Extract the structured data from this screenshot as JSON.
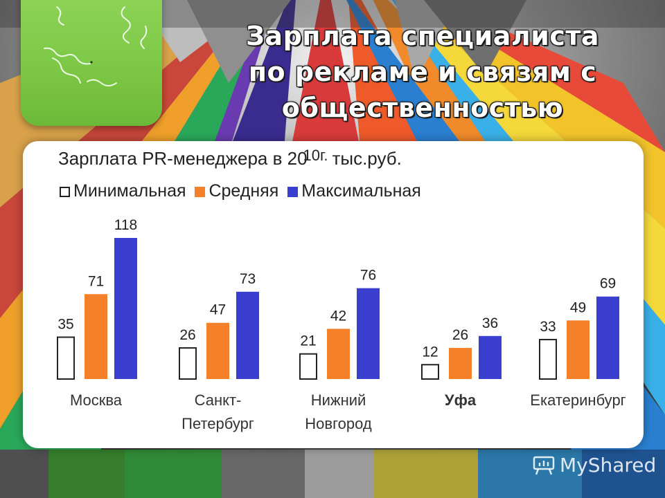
{
  "slide": {
    "title": "Зарплата специалиста по рекламе и связям с общественностью",
    "watermark": "MyShared"
  },
  "colors": {
    "minimum": "#ffffff",
    "average": "#f4802a",
    "maximum": "#3a3fd0",
    "tab_green": "#7cc845"
  },
  "icons": [
    "squiggle-decoration-icon",
    "myshared-logo-icon"
  ],
  "chart_data": {
    "type": "bar",
    "title": "Зарплата PR-менеджера в 2010г.,тыс.руб.",
    "title_main": "Зарплата PR-менеджера в 20",
    "title_overlap": "10г.",
    "title_tail": "тыс.руб.",
    "legend": [
      "Минимальная",
      "Средняя",
      "Максимальная"
    ],
    "categories": [
      [
        "Москва"
      ],
      [
        "Санкт-",
        "Петербург"
      ],
      [
        "Нижний",
        "Новгород"
      ],
      [
        "Уфа"
      ],
      [
        "Екатеринбург"
      ]
    ],
    "series": [
      {
        "name": "Минимальная",
        "values": [
          35,
          26,
          21,
          12,
          33
        ]
      },
      {
        "name": "Средняя",
        "values": [
          71,
          47,
          42,
          26,
          49
        ]
      },
      {
        "name": "Максимальная",
        "values": [
          118,
          73,
          76,
          36,
          69
        ]
      }
    ],
    "value_labels": true,
    "xlabel": "",
    "ylabel": "",
    "grid": false
  }
}
